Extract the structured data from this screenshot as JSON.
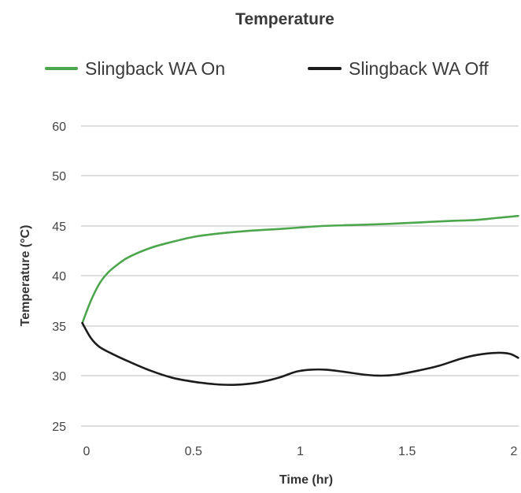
{
  "chart_data": {
    "type": "line",
    "title": "Temperature",
    "xlabel": "Time (hr)",
    "ylabel": "Temperature (°C)",
    "xlim": [
      0,
      2
    ],
    "ylim": [
      25,
      60
    ],
    "x_ticks": [
      0,
      0.5,
      1,
      1.5,
      2
    ],
    "x_tick_labels": [
      "0",
      "0.5",
      "1",
      "1.5",
      "2"
    ],
    "y_ticks": [
      25,
      30,
      35,
      40,
      45,
      50,
      60
    ],
    "y_tick_labels": [
      "25",
      "30",
      "35",
      "40",
      "45",
      "50",
      "60"
    ],
    "grid": true,
    "legend_position": "top",
    "series": [
      {
        "name": "Slingback WA On",
        "color": "#4ca64c",
        "points": [
          [
            -0.02,
            35.3
          ],
          [
            0.02,
            37.5
          ],
          [
            0.06,
            39.2
          ],
          [
            0.1,
            40.3
          ],
          [
            0.15,
            41.2
          ],
          [
            0.2,
            41.9
          ],
          [
            0.3,
            42.8
          ],
          [
            0.4,
            43.4
          ],
          [
            0.5,
            43.9
          ],
          [
            0.6,
            44.2
          ],
          [
            0.75,
            44.5
          ],
          [
            0.9,
            44.7
          ],
          [
            1.0,
            44.85
          ],
          [
            1.1,
            45.0
          ],
          [
            1.25,
            45.1
          ],
          [
            1.4,
            45.2
          ],
          [
            1.55,
            45.35
          ],
          [
            1.7,
            45.5
          ],
          [
            1.82,
            45.6
          ],
          [
            1.92,
            45.8
          ],
          [
            2.02,
            46.0
          ]
        ]
      },
      {
        "name": "Slingback WA Off",
        "color": "#1c1c1c",
        "points": [
          [
            -0.02,
            35.3
          ],
          [
            0.02,
            33.8
          ],
          [
            0.06,
            32.9
          ],
          [
            0.12,
            32.2
          ],
          [
            0.2,
            31.4
          ],
          [
            0.3,
            30.5
          ],
          [
            0.4,
            29.8
          ],
          [
            0.5,
            29.4
          ],
          [
            0.6,
            29.15
          ],
          [
            0.7,
            29.1
          ],
          [
            0.8,
            29.3
          ],
          [
            0.9,
            29.8
          ],
          [
            0.98,
            30.4
          ],
          [
            1.05,
            30.6
          ],
          [
            1.12,
            30.6
          ],
          [
            1.2,
            30.4
          ],
          [
            1.3,
            30.1
          ],
          [
            1.38,
            30.0
          ],
          [
            1.45,
            30.1
          ],
          [
            1.55,
            30.5
          ],
          [
            1.65,
            31.0
          ],
          [
            1.75,
            31.7
          ],
          [
            1.83,
            32.1
          ],
          [
            1.92,
            32.3
          ],
          [
            1.98,
            32.2
          ],
          [
            2.02,
            31.8
          ]
        ]
      }
    ]
  }
}
